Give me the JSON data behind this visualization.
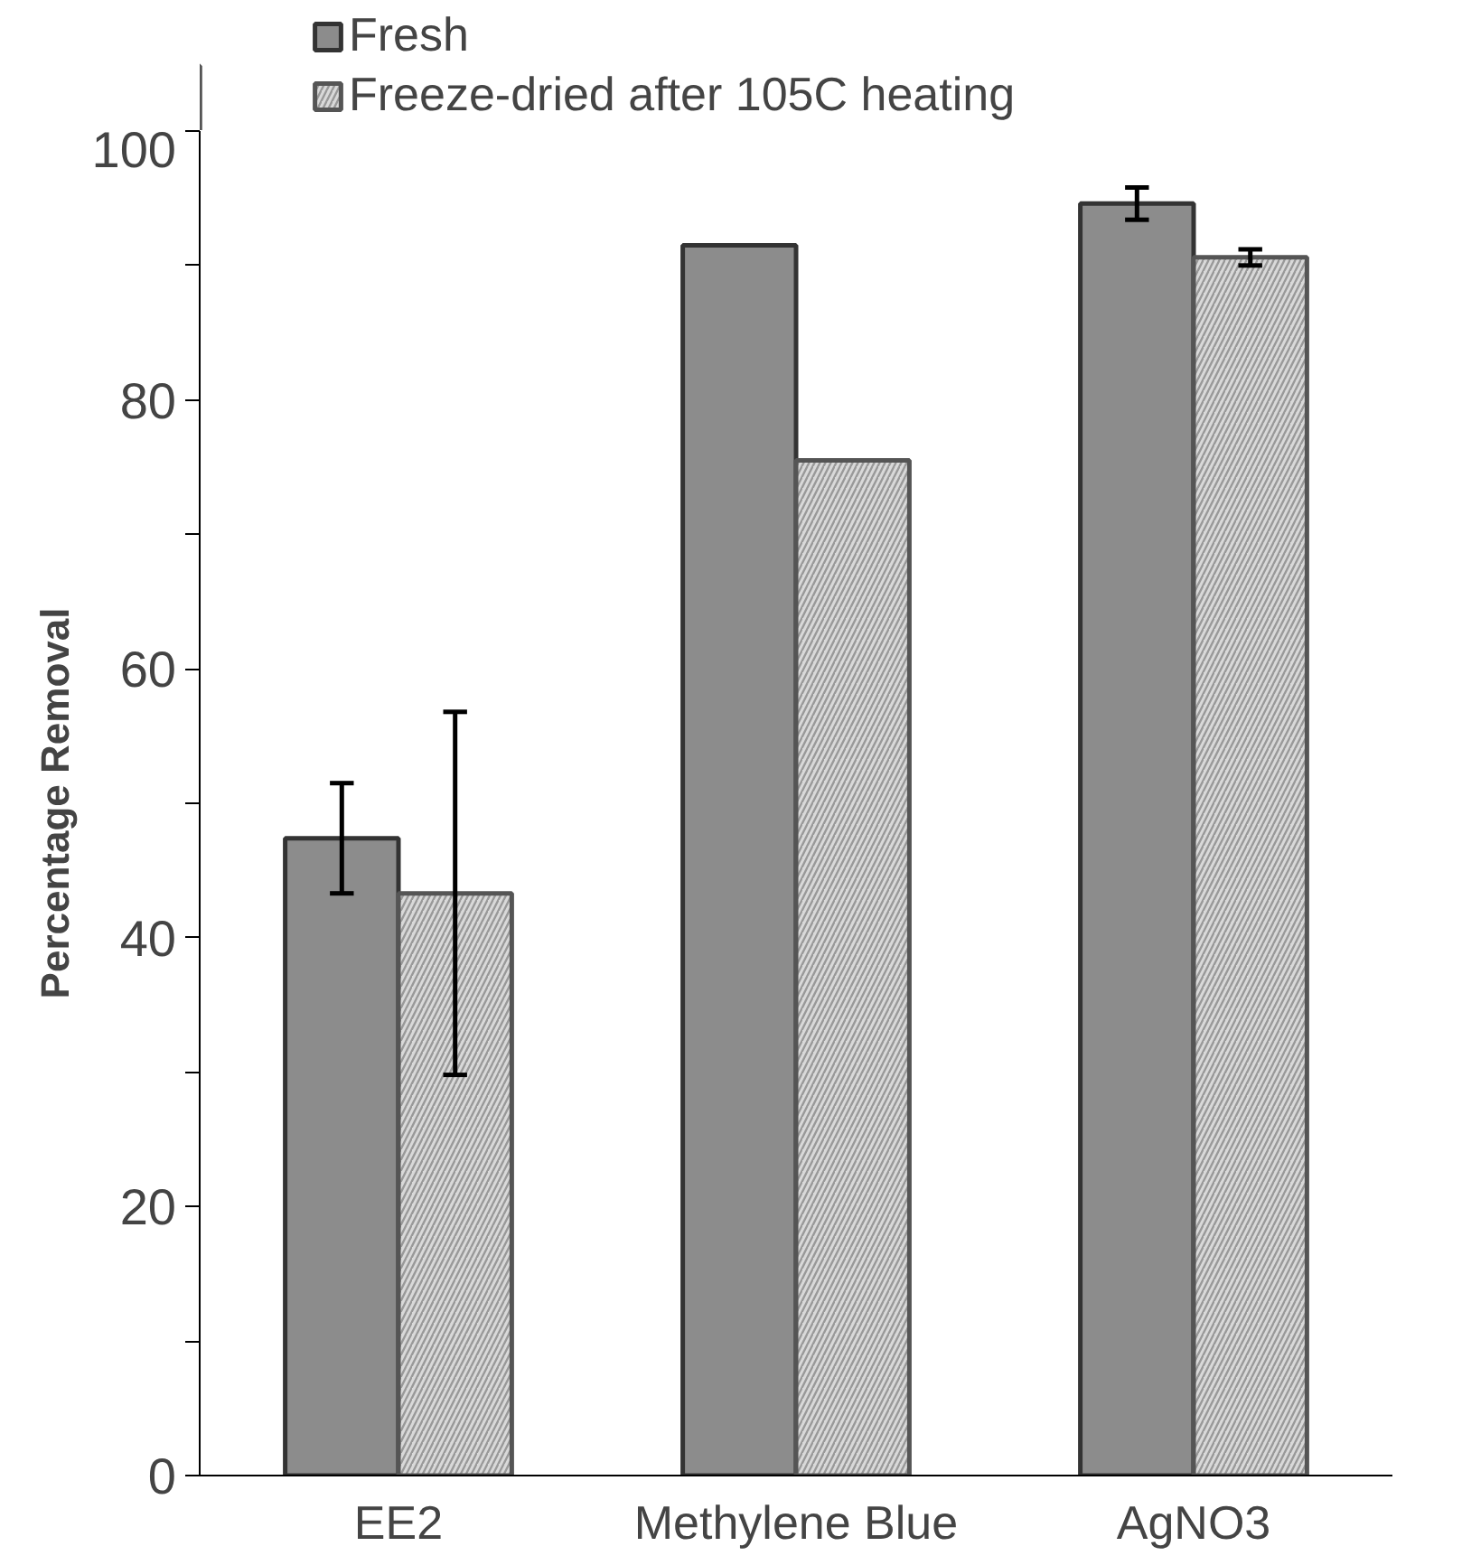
{
  "chart_data": {
    "type": "bar",
    "ylabel": "Percentage Removal",
    "categories": [
      "EE2",
      "Methylene Blue",
      "AgNO3"
    ],
    "series": [
      {
        "name": "Fresh",
        "color": "#8c8c8c",
        "values": [
          47.4,
          91.5,
          94.6
        ],
        "errors": [
          4.1,
          null,
          1.2
        ]
      },
      {
        "name": "Freeze-dried after 105C heating",
        "color": "#d9d9d9",
        "values": [
          43.3,
          75.5,
          90.6
        ],
        "errors": [
          13.5,
          null,
          0.6
        ]
      }
    ],
    "ylim": [
      0,
      100
    ],
    "yticks": [
      0,
      {
        "value": 10,
        "label": null
      },
      20,
      {
        "value": 30,
        "label": null
      },
      40,
      {
        "value": 50,
        "label": null
      },
      60,
      {
        "value": 70,
        "label": null
      },
      80,
      {
        "value": 90,
        "label": null
      },
      100
    ],
    "grid": false,
    "legend": "top"
  }
}
